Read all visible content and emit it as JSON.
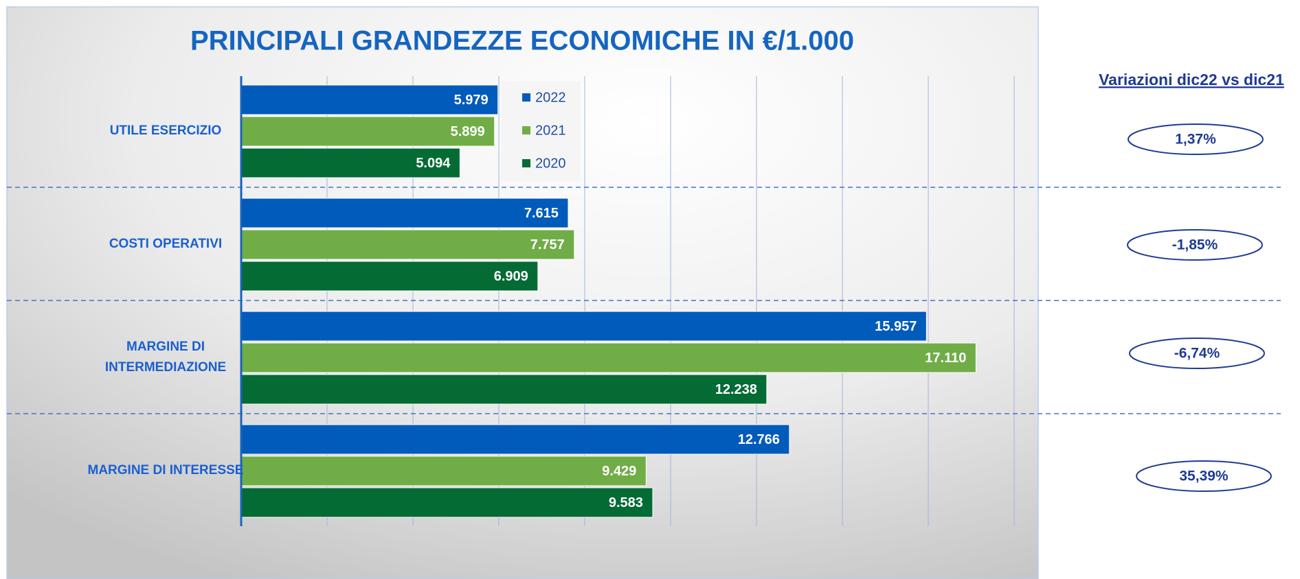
{
  "chart_data": {
    "type": "barh",
    "title": "PRINCIPALI GRANDEZZE ECONOMICHE IN €/1.000",
    "categories": [
      "UTILE ESERCIZIO",
      "COSTI OPERATIVI",
      "MARGINE DI INTERMEDIAZIONE",
      "MARGINE DI INTERESSE"
    ],
    "series": [
      {
        "name": "2022",
        "color": "#005bbb",
        "values": [
          5979,
          7615,
          15957,
          12766
        ],
        "value_labels": [
          "5.979",
          "7.615",
          "15.957",
          "12.766"
        ]
      },
      {
        "name": "2021",
        "color": "#70ad47",
        "values": [
          5899,
          7757,
          17110,
          9429
        ],
        "value_labels": [
          "5.899",
          "7.757",
          "17.110",
          "9.429"
        ]
      },
      {
        "name": "2020",
        "color": "#046b35",
        "values": [
          5094,
          6909,
          12238,
          9583
        ],
        "value_labels": [
          "5.094",
          "6.909",
          "12.238",
          "9.583"
        ]
      }
    ],
    "xlim": [
      0,
      18000
    ],
    "xticks": [
      0,
      2000,
      4000,
      6000,
      8000,
      10000,
      12000,
      14000,
      16000,
      18000
    ],
    "grid": true,
    "legend": "top",
    "variations": {
      "title": "Variazioni dic22 vs dic21",
      "values": [
        1.37,
        -1.85,
        -6.74,
        35.39
      ],
      "value_labels": [
        "1,37%",
        "-1,85%",
        "-6,74%",
        "35,39%"
      ]
    }
  }
}
